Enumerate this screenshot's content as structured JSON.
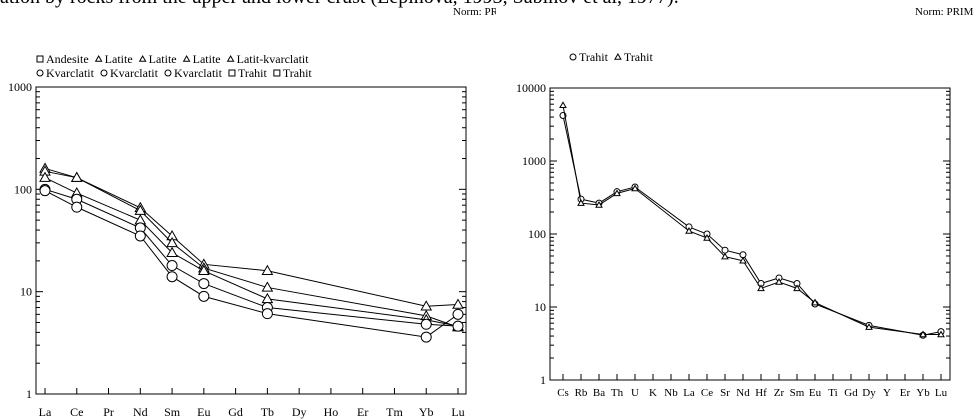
{
  "header_text": "ation by rocks from the upper and lower crust (Lepinova, 1993, Sabinov et al, 1977).",
  "norm_left": "Norm: PRI",
  "norm_right": "Norm: PRIM",
  "chart_data": [
    {
      "type": "line",
      "log_scale": true,
      "ylim": [
        1,
        1000
      ],
      "y_ticks": [
        "1",
        "10",
        "100",
        "1000"
      ],
      "categories": [
        "La",
        "Ce",
        "Pr",
        "Nd",
        "Sm",
        "Eu",
        "Gd",
        "Tb",
        "Dy",
        "Ho",
        "Er",
        "Tm",
        "Yb",
        "Lu"
      ],
      "legend_rows": [
        [
          {
            "label": "Andesite",
            "marker": "square"
          },
          {
            "label": "Latite",
            "marker": "triangle"
          },
          {
            "label": "Latite",
            "marker": "triangle"
          },
          {
            "label": "Latite",
            "marker": "triangle"
          },
          {
            "label": "Latit-kvarclatit",
            "marker": "triangle"
          }
        ],
        [
          {
            "label": "Kvarclatit",
            "marker": "circle"
          },
          {
            "label": "Kvarclatit",
            "marker": "circle"
          },
          {
            "label": "Kvarclatit",
            "marker": "circle"
          },
          {
            "label": "Trahit",
            "marker": "square"
          },
          {
            "label": "Trahit",
            "marker": "square"
          }
        ]
      ],
      "series": [
        {
          "marker": "triangle",
          "values": {
            "La": 160,
            "Ce": 130,
            "Nd": 66,
            "Sm": 35,
            "Eu": 18.5,
            "Tb": 16,
            "Yb": 7.2,
            "Lu": 7.5
          }
        },
        {
          "marker": "triangle",
          "values": {
            "La": 150,
            "Ce": 130,
            "Nd": 62,
            "Sm": 30,
            "Eu": 17,
            "Tb": 11,
            "Yb": 5.8,
            "Lu": 4.5
          }
        },
        {
          "marker": "triangle",
          "values": {
            "La": 130,
            "Ce": 92,
            "Nd": 50,
            "Sm": 24,
            "Eu": 16,
            "Tb": 8.5,
            "Yb": 5.3,
            "Lu": 4.6
          }
        },
        {
          "marker": "circle",
          "values": {
            "La": 100,
            "Ce": 80,
            "Nd": 42,
            "Sm": 18,
            "Eu": 12,
            "Tb": 7,
            "Yb": 4.8,
            "Lu": 4.6
          }
        },
        {
          "marker": "circle",
          "values": {
            "La": 97,
            "Ce": 67,
            "Nd": 35,
            "Sm": 14,
            "Eu": 9,
            "Tb": 6.1,
            "Yb": 3.6,
            "Lu": 6
          }
        }
      ]
    },
    {
      "type": "line",
      "log_scale": true,
      "ylim": [
        1,
        10000
      ],
      "y_ticks": [
        "1",
        "10",
        "100",
        "1000",
        "10000"
      ],
      "categories": [
        "Cs",
        "Rb",
        "Ba",
        "Th",
        "U",
        "K",
        "Nb",
        "La",
        "Ce",
        "Sr",
        "Nd",
        "Hf",
        "Zr",
        "Sm",
        "Eu",
        "Ti",
        "Gd",
        "Dy",
        "Y",
        "Er",
        "Yb",
        "Lu"
      ],
      "legend": [
        {
          "label": "Trahit",
          "marker": "circle"
        },
        {
          "label": "Trahit",
          "marker": "triangle"
        }
      ],
      "series": [
        {
          "marker": "circle",
          "values": {
            "Cs": 4200,
            "Rb": 300,
            "Ba": 265,
            "Th": 380,
            "U": 440,
            "La": 125,
            "Ce": 100,
            "Sr": 60,
            "Nd": 52,
            "Hf": 21,
            "Zr": 25,
            "Sm": 21,
            "Eu": 11,
            "Dy": 5.6,
            "Yb": 4.1,
            "Lu": 4.6
          }
        },
        {
          "marker": "triangle",
          "values": {
            "Cs": 5800,
            "Rb": 265,
            "Ba": 250,
            "Th": 360,
            "U": 420,
            "La": 110,
            "Ce": 88,
            "Sr": 49,
            "Nd": 43,
            "Hf": 18,
            "Zr": 22,
            "Sm": 18,
            "Eu": 11.5,
            "Dy": 5.3,
            "Yb": 4.2,
            "Lu": 4.2
          }
        }
      ]
    }
  ]
}
